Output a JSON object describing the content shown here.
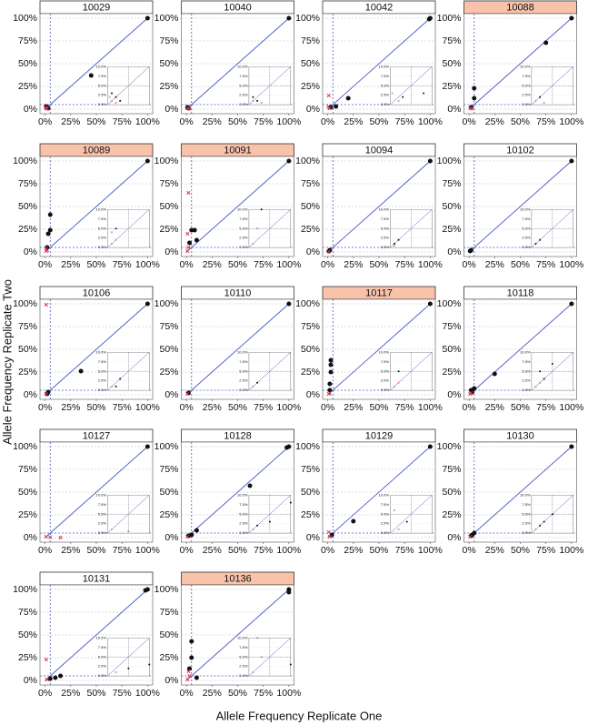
{
  "chart_data": {
    "type": "scatter",
    "xlabel": "Allele Frequency Replicate One",
    "ylabel": "Allele Frequency Replicate Two",
    "xlim": [
      -5,
      105
    ],
    "ylim": [
      -5,
      105
    ],
    "xticks": [
      {
        "value": 0,
        "label": "0%"
      },
      {
        "value": 25,
        "label": "25%"
      },
      {
        "value": 50,
        "label": "50%"
      },
      {
        "value": 75,
        "label": "75%"
      },
      {
        "value": 100,
        "label": "100%"
      }
    ],
    "yticks": [
      {
        "value": 0,
        "label": "0%"
      },
      {
        "value": 25,
        "label": "25%"
      },
      {
        "value": 50,
        "label": "50%"
      },
      {
        "value": 75,
        "label": "75%"
      },
      {
        "value": 100,
        "label": "100%"
      }
    ],
    "inset_lim": [
      0,
      10
    ],
    "inset_ticks": [
      {
        "value": 0,
        "label": "0.0%"
      },
      {
        "value": 2.5,
        "label": "2.5%"
      },
      {
        "value": 5,
        "label": "5.0%"
      },
      {
        "value": 7.5,
        "label": "7.5%"
      },
      {
        "value": 10,
        "label": "10.0%"
      }
    ],
    "threshold": 5,
    "grid": "y",
    "diagonal_color": "#4a5bc4",
    "highlight_color": "#f9c3ab",
    "panels": [
      {
        "title": "10029",
        "highlight": false,
        "series": [
          {
            "marker": "dot",
            "color": "#111111",
            "x": [
              100,
              45,
              2,
              3,
              1
            ],
            "values": [
              100,
              37,
              2,
              1,
              3
            ]
          },
          {
            "marker": "cross",
            "color": "#d9304a",
            "x": [
              1,
              2,
              0.5
            ],
            "values": [
              1,
              0.5,
              2
            ]
          }
        ]
      },
      {
        "title": "10040",
        "highlight": false,
        "series": [
          {
            "marker": "dot",
            "color": "#111111",
            "x": [
              100,
              2,
              1
            ],
            "values": [
              100,
              1,
              2
            ]
          },
          {
            "marker": "cross",
            "color": "#d9304a",
            "x": [
              1,
              3
            ],
            "values": [
              1,
              0.5
            ]
          }
        ]
      },
      {
        "title": "10042",
        "highlight": false,
        "series": [
          {
            "marker": "dot",
            "color": "#111111",
            "x": [
              100,
              99,
              20,
              8,
              3
            ],
            "values": [
              100,
              99,
              12,
              3,
              2
            ]
          },
          {
            "marker": "cross",
            "color": "#d9304a",
            "x": [
              1,
              2,
              0.5
            ],
            "values": [
              15,
              1,
              3
            ]
          }
        ]
      },
      {
        "title": "10088",
        "highlight": true,
        "series": [
          {
            "marker": "dot",
            "color": "#111111",
            "x": [
              100,
              75,
              5,
              5,
              2
            ],
            "values": [
              100,
              73,
              23,
              12,
              2
            ]
          },
          {
            "marker": "cross",
            "color": "#d9304a",
            "x": [
              1,
              3
            ],
            "values": [
              1,
              0.5
            ]
          }
        ]
      },
      {
        "title": "10089",
        "highlight": true,
        "series": [
          {
            "marker": "dot",
            "color": "#111111",
            "x": [
              100,
              5,
              5,
              3,
              2
            ],
            "values": [
              100,
              41,
              24,
              20,
              5
            ]
          },
          {
            "marker": "cross",
            "color": "#d9304a",
            "x": [
              1,
              2,
              1
            ],
            "values": [
              1,
              2,
              4
            ]
          }
        ]
      },
      {
        "title": "10091",
        "highlight": true,
        "series": [
          {
            "marker": "dot",
            "color": "#111111",
            "x": [
              100,
              8,
              5,
              3,
              10
            ],
            "values": [
              100,
              24,
              24,
              10,
              13
            ]
          },
          {
            "marker": "cross",
            "color": "#d9304a",
            "x": [
              2,
              1,
              2,
              1
            ],
            "values": [
              65,
              20,
              5,
              1
            ]
          }
        ]
      },
      {
        "title": "10094",
        "highlight": false,
        "series": [
          {
            "marker": "dot",
            "color": "#111111",
            "x": [
              100,
              2,
              1
            ],
            "values": [
              100,
              2,
              1
            ]
          },
          {
            "marker": "cross",
            "color": "#d9304a",
            "x": [
              1
            ],
            "values": [
              0.5
            ]
          }
        ]
      },
      {
        "title": "10102",
        "highlight": false,
        "series": [
          {
            "marker": "dot",
            "color": "#111111",
            "x": [
              100,
              2,
              1
            ],
            "values": [
              100,
              2,
              1
            ]
          }
        ]
      },
      {
        "title": "10106",
        "highlight": false,
        "series": [
          {
            "marker": "dot",
            "color": "#111111",
            "x": [
              100,
              35,
              3,
              2
            ],
            "values": [
              100,
              26,
              3,
              1
            ]
          },
          {
            "marker": "cross",
            "color": "#d9304a",
            "x": [
              1,
              1
            ],
            "values": [
              1,
              99
            ]
          }
        ]
      },
      {
        "title": "10110",
        "highlight": false,
        "series": [
          {
            "marker": "dot",
            "color": "#111111",
            "x": [
              100,
              2
            ],
            "values": [
              100,
              2
            ]
          },
          {
            "marker": "cross",
            "color": "#d9304a",
            "x": [
              1
            ],
            "values": [
              1
            ]
          }
        ]
      },
      {
        "title": "10117",
        "highlight": true,
        "series": [
          {
            "marker": "dot",
            "color": "#111111",
            "x": [
              100,
              3,
              3,
              3,
              2,
              2
            ],
            "values": [
              100,
              38,
              33,
              25,
              12,
              5
            ]
          },
          {
            "marker": "cross",
            "color": "#d9304a",
            "x": [
              1,
              2
            ],
            "values": [
              1,
              2
            ]
          }
        ]
      },
      {
        "title": "10118",
        "highlight": false,
        "series": [
          {
            "marker": "dot",
            "color": "#111111",
            "x": [
              100,
              25,
              5,
              3,
              2
            ],
            "values": [
              100,
              23,
              7,
              3,
              5
            ]
          },
          {
            "marker": "cross",
            "color": "#d9304a",
            "x": [
              1,
              2
            ],
            "values": [
              1,
              2
            ]
          }
        ]
      },
      {
        "title": "10127",
        "highlight": false,
        "series": [
          {
            "marker": "dot",
            "color": "#111111",
            "x": [
              100
            ],
            "values": [
              100
            ]
          },
          {
            "marker": "cross",
            "color": "#d9304a",
            "x": [
              1,
              5,
              15
            ],
            "values": [
              1,
              0.5,
              0
            ]
          }
        ]
      },
      {
        "title": "10128",
        "highlight": false,
        "series": [
          {
            "marker": "dot",
            "color": "#111111",
            "x": [
              100,
              98,
              62,
              10,
              5,
              2
            ],
            "values": [
              100,
              99,
              57,
              8,
              3,
              2
            ]
          },
          {
            "marker": "cross",
            "color": "#d9304a",
            "x": [
              1
            ],
            "values": [
              1
            ]
          }
        ]
      },
      {
        "title": "10129",
        "highlight": false,
        "series": [
          {
            "marker": "dot",
            "color": "#111111",
            "x": [
              100,
              25,
              4
            ],
            "values": [
              100,
              18,
              3
            ]
          },
          {
            "marker": "cross",
            "color": "#d9304a",
            "x": [
              1,
              2
            ],
            "values": [
              6,
              1
            ]
          }
        ]
      },
      {
        "title": "10130",
        "highlight": false,
        "series": [
          {
            "marker": "dot",
            "color": "#111111",
            "x": [
              100,
              5,
              3,
              2
            ],
            "values": [
              100,
              5,
              3,
              2
            ]
          },
          {
            "marker": "cross",
            "color": "#d9304a",
            "x": [
              1
            ],
            "values": [
              1
            ]
          }
        ]
      },
      {
        "title": "10131",
        "highlight": false,
        "series": [
          {
            "marker": "dot",
            "color": "#111111",
            "x": [
              100,
              98,
              15,
              10,
              5
            ],
            "values": [
              100,
              99,
              5,
              3,
              2
            ]
          },
          {
            "marker": "cross",
            "color": "#d9304a",
            "x": [
              1,
              2
            ],
            "values": [
              23,
              1
            ]
          }
        ]
      },
      {
        "title": "10136",
        "highlight": true,
        "series": [
          {
            "marker": "dot",
            "color": "#111111",
            "x": [
              100,
              100,
              5,
              5,
              10,
              3
            ],
            "values": [
              100,
              97,
              43,
              25,
              3,
              13
            ]
          },
          {
            "marker": "cross",
            "color": "#d9304a",
            "x": [
              1,
              2,
              3
            ],
            "values": [
              1,
              10,
              5
            ]
          }
        ]
      }
    ]
  }
}
